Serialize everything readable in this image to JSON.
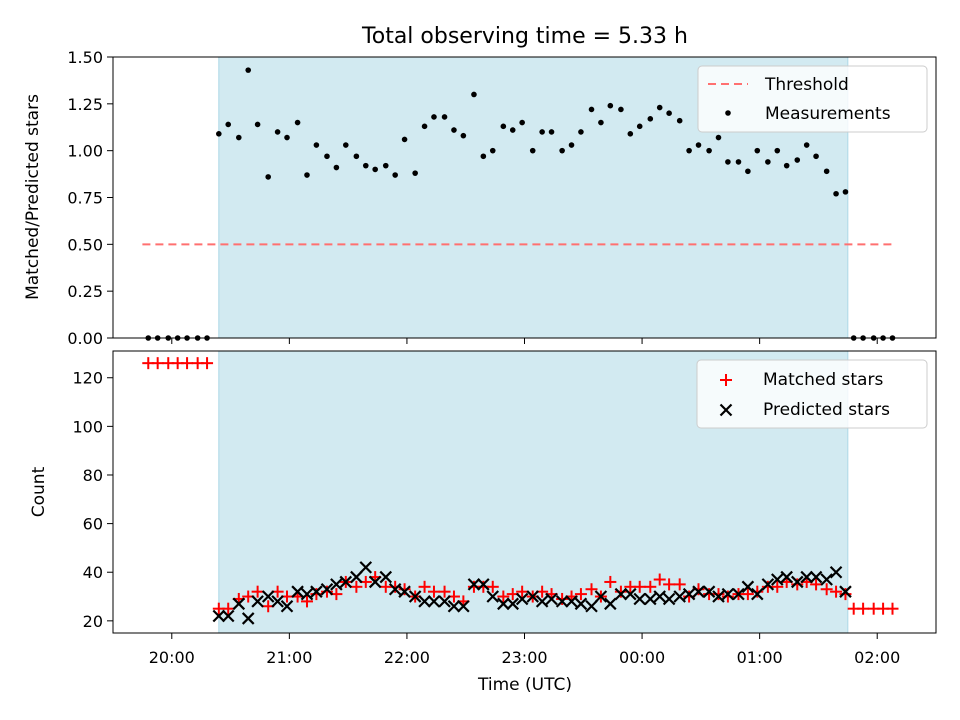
{
  "figure": {
    "title": "Total observing time = 5.33 h",
    "xlabel": "Time (UTC)",
    "x_ticks": [
      "20:00",
      "21:00",
      "22:00",
      "23:00",
      "00:00",
      "01:00",
      "02:00"
    ],
    "x_ticks_hours": [
      20,
      21,
      22,
      23,
      24,
      25,
      26
    ],
    "xlim_hours": [
      19.5,
      26.5
    ],
    "shaded_span_hours": [
      20.4,
      25.75
    ],
    "colors": {
      "shade": "#add8e6",
      "threshold": "#ff7070",
      "measurements": "#000000",
      "matched": "#ff0000",
      "predicted": "#000000"
    }
  },
  "chart_data": [
    {
      "type": "scatter",
      "ylabel": "Matched/Predicted stars",
      "ylim": [
        0,
        1.5
      ],
      "y_ticks": [
        "0.00",
        "0.25",
        "0.50",
        "0.75",
        "1.00",
        "1.25",
        "1.50"
      ],
      "y_tick_values": [
        0,
        0.25,
        0.5,
        0.75,
        1.0,
        1.25,
        1.5
      ],
      "legend_position": "top-right",
      "threshold": {
        "name": "Threshold",
        "value": 0.5,
        "x_range_hours": [
          19.75,
          26.15
        ]
      },
      "series": [
        {
          "name": "Measurements",
          "marker": "dot",
          "x": [
            19.8,
            19.88,
            19.97,
            20.05,
            20.13,
            20.22,
            20.3,
            20.4,
            20.48,
            20.57,
            20.65,
            20.73,
            20.82,
            20.9,
            20.98,
            21.07,
            21.15,
            21.23,
            21.32,
            21.4,
            21.48,
            21.57,
            21.65,
            21.73,
            21.82,
            21.9,
            21.98,
            22.07,
            22.15,
            22.23,
            22.32,
            22.4,
            22.48,
            22.57,
            22.65,
            22.73,
            22.82,
            22.9,
            22.98,
            23.07,
            23.15,
            23.23,
            23.32,
            23.4,
            23.48,
            23.57,
            23.65,
            23.73,
            23.82,
            23.9,
            23.98,
            24.07,
            24.15,
            24.23,
            24.32,
            24.4,
            24.48,
            24.57,
            24.65,
            24.73,
            24.82,
            24.9,
            24.98,
            25.07,
            25.15,
            25.23,
            25.32,
            25.4,
            25.48,
            25.57,
            25.65,
            25.73,
            25.8,
            25.88,
            25.97,
            26.05,
            26.13
          ],
          "y": [
            0,
            0,
            0,
            0,
            0,
            0,
            0,
            1.09,
            1.14,
            1.07,
            1.43,
            1.14,
            0.86,
            1.1,
            1.07,
            1.15,
            0.87,
            1.03,
            0.97,
            0.91,
            1.03,
            0.97,
            0.92,
            0.9,
            0.92,
            0.87,
            1.06,
            0.88,
            1.13,
            1.18,
            1.18,
            1.11,
            1.08,
            1.3,
            0.97,
            1.0,
            1.13,
            1.11,
            1.15,
            1.0,
            1.1,
            1.1,
            1.0,
            1.03,
            1.1,
            1.22,
            1.15,
            1.24,
            1.22,
            1.09,
            1.13,
            1.17,
            1.23,
            1.2,
            1.16,
            1.0,
            1.03,
            1.0,
            1.07,
            0.94,
            0.94,
            0.89,
            1.0,
            0.94,
            1.0,
            0.92,
            0.95,
            1.03,
            0.97,
            0.89,
            0.77,
            0.78,
            0,
            0,
            0,
            0,
            0
          ]
        }
      ]
    },
    {
      "type": "scatter",
      "ylabel": "Count",
      "ylim": [
        15,
        131
      ],
      "y_ticks": [
        "20",
        "40",
        "60",
        "80",
        "100",
        "120"
      ],
      "y_tick_values": [
        20,
        40,
        60,
        80,
        100,
        120
      ],
      "legend_position": "top-right",
      "series": [
        {
          "name": "Matched stars",
          "marker": "plus",
          "x": [
            19.8,
            19.88,
            19.97,
            20.05,
            20.13,
            20.22,
            20.3,
            20.4,
            20.48,
            20.57,
            20.65,
            20.73,
            20.82,
            20.9,
            20.98,
            21.07,
            21.15,
            21.23,
            21.32,
            21.4,
            21.48,
            21.57,
            21.65,
            21.73,
            21.82,
            21.9,
            21.98,
            22.07,
            22.15,
            22.23,
            22.32,
            22.4,
            22.48,
            22.57,
            22.65,
            22.73,
            22.82,
            22.9,
            22.98,
            23.07,
            23.15,
            23.23,
            23.32,
            23.4,
            23.48,
            23.57,
            23.65,
            23.73,
            23.82,
            23.9,
            23.98,
            24.07,
            24.15,
            24.23,
            24.32,
            24.4,
            24.48,
            24.57,
            24.65,
            24.73,
            24.82,
            24.9,
            24.98,
            25.07,
            25.15,
            25.23,
            25.32,
            25.4,
            25.48,
            25.57,
            25.65,
            25.73,
            25.8,
            25.88,
            25.97,
            26.05,
            26.13
          ],
          "y": [
            126,
            126,
            126,
            126,
            126,
            126,
            126,
            25,
            25,
            29,
            30,
            32,
            26,
            32,
            30,
            30,
            28,
            31,
            32,
            31,
            36,
            34,
            36,
            38,
            34,
            34,
            33,
            30,
            34,
            32,
            32,
            30,
            28,
            34,
            34,
            34,
            30,
            31,
            32,
            30,
            32,
            31,
            29,
            30,
            31,
            33,
            30,
            36,
            32,
            34,
            34,
            34,
            37,
            35,
            35,
            30,
            33,
            31,
            31,
            30,
            31,
            31,
            32,
            34,
            34,
            36,
            35,
            36,
            35,
            33,
            32,
            31,
            25,
            25,
            25,
            25,
            25
          ]
        },
        {
          "name": "Predicted stars",
          "marker": "x",
          "x": [
            20.4,
            20.48,
            20.57,
            20.65,
            20.73,
            20.82,
            20.9,
            20.98,
            21.07,
            21.15,
            21.23,
            21.32,
            21.4,
            21.48,
            21.57,
            21.65,
            21.73,
            21.82,
            21.9,
            21.98,
            22.07,
            22.15,
            22.23,
            22.32,
            22.4,
            22.48,
            22.57,
            22.65,
            22.73,
            22.82,
            22.9,
            22.98,
            23.07,
            23.15,
            23.23,
            23.32,
            23.4,
            23.48,
            23.57,
            23.65,
            23.73,
            23.82,
            23.9,
            23.98,
            24.07,
            24.15,
            24.23,
            24.32,
            24.4,
            24.48,
            24.57,
            24.65,
            24.73,
            24.82,
            24.9,
            24.98,
            25.07,
            25.15,
            25.23,
            25.32,
            25.4,
            25.48,
            25.57,
            25.65,
            25.73
          ],
          "y": [
            22,
            22,
            27,
            21,
            28,
            30,
            28,
            26,
            32,
            31,
            32,
            33,
            35,
            36,
            38,
            42,
            36,
            38,
            33,
            32,
            30,
            28,
            28,
            28,
            26,
            26,
            35,
            35,
            30,
            27,
            27,
            29,
            30,
            28,
            29,
            28,
            28,
            27,
            26,
            30,
            27,
            31,
            31,
            29,
            29,
            30,
            29,
            30,
            31,
            32,
            32,
            30,
            31,
            31,
            34,
            31,
            35,
            37,
            38,
            36,
            38,
            38,
            37,
            40,
            32
          ]
        }
      ]
    }
  ]
}
